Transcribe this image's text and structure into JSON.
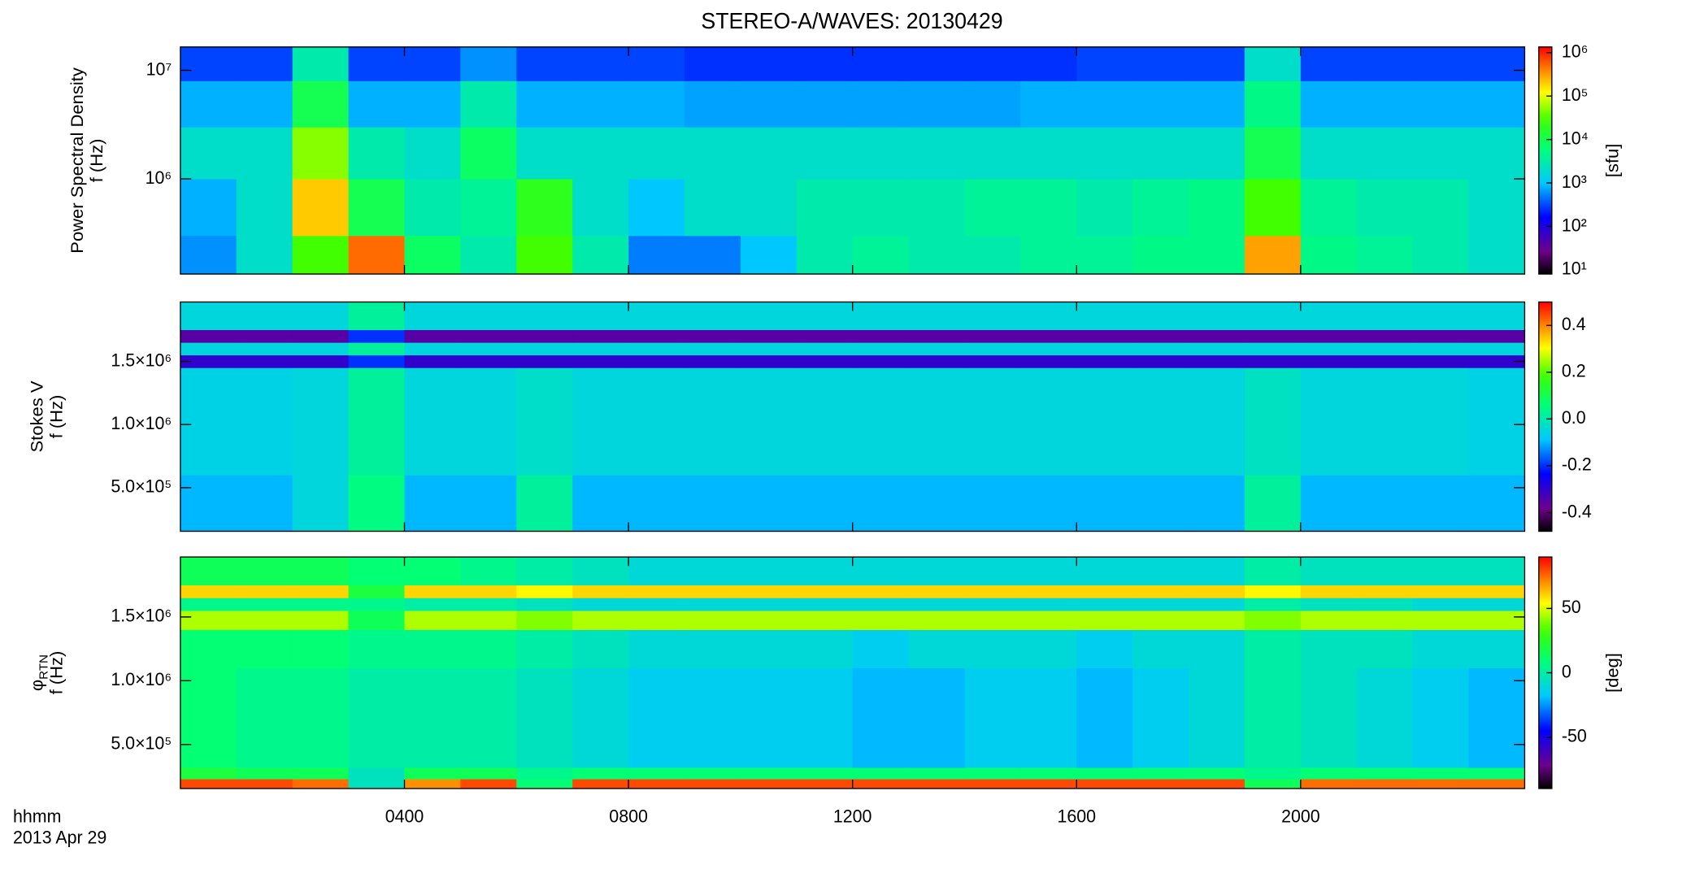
{
  "chart_data": [
    {
      "type": "heatmap",
      "title": "STEREO-A/WAVES: 20130429",
      "ylabel": [
        "Power Spectral Density",
        "f (Hz)"
      ],
      "xlim": [
        0,
        24
      ],
      "xticks": [
        4,
        8,
        12,
        16,
        20
      ],
      "x_edges": [
        0,
        1,
        2,
        3,
        4,
        5,
        6,
        7,
        8,
        9,
        10,
        11,
        12,
        13,
        14,
        15,
        16,
        17,
        18,
        19,
        20,
        21,
        22,
        23,
        24
      ],
      "ylog": true,
      "ylim": [
        133000,
        16400000
      ],
      "yticks": [
        {
          "value": 1000000,
          "label": "10⁶"
        },
        {
          "value": 10000000,
          "label": "10⁷"
        }
      ],
      "y_edges": [
        133000,
        300000,
        1000000,
        3000000,
        8000000,
        16400000
      ],
      "zlog": true,
      "zlim": [
        8,
        1350000
      ],
      "zlabel": "[sfu]",
      "zticks": [
        {
          "value": 10,
          "label": "10¹"
        },
        {
          "value": 100,
          "label": "10²"
        },
        {
          "value": 1000,
          "label": "10³"
        },
        {
          "value": 10000,
          "label": "10⁴"
        },
        {
          "value": 100000,
          "label": "10⁵"
        },
        {
          "value": 1000000,
          "label": "10⁶"
        }
      ],
      "z": [
        [
          600,
          2000.0,
          30000.0,
          500000.0,
          8000.0,
          3000.0,
          30000.0,
          3000.0,
          500,
          500,
          1000.0,
          3000.0,
          4000.0,
          3000.0,
          3000.0,
          4000.0,
          4000.0,
          5000.0,
          5000.0,
          300000.0,
          5000.0,
          4000.0,
          3000.0,
          2000.0
        ],
        [
          800,
          2000.0,
          200000.0,
          10000.0,
          3000.0,
          4000.0,
          20000.0,
          2000.0,
          1000.0,
          2000.0,
          2000.0,
          3000.0,
          3000.0,
          3000.0,
          4000.0,
          4000.0,
          3000.0,
          4000.0,
          5000.0,
          30000.0,
          4000.0,
          3000.0,
          3000.0,
          2000.0
        ],
        [
          2000.0,
          2000.0,
          50000.0,
          3000.0,
          2000.0,
          8000.0,
          2000.0,
          2000.0,
          2000.0,
          2000.0,
          2000.0,
          2000.0,
          2000.0,
          2000.0,
          2000.0,
          2000.0,
          2000.0,
          2000.0,
          2000.0,
          10000.0,
          2000.0,
          2000.0,
          2000.0,
          2000.0
        ],
        [
          800,
          800,
          10000.0,
          800,
          800,
          3000.0,
          800,
          800,
          800,
          700,
          700,
          700,
          700,
          700,
          700,
          800,
          800,
          800,
          800,
          5000.0,
          800,
          800,
          800,
          800
        ],
        [
          300,
          300,
          3000.0,
          300,
          300,
          600,
          300,
          300,
          300,
          250,
          250,
          250,
          250,
          250,
          250,
          250,
          300,
          300,
          300,
          2000.0,
          300,
          300,
          300,
          300
        ]
      ]
    },
    {
      "type": "heatmap",
      "ylabel": [
        "Stokes V",
        "f (Hz)"
      ],
      "xlim": [
        0,
        24
      ],
      "xticks": [
        4,
        8,
        12,
        16,
        20
      ],
      "x_edges": [
        0,
        1,
        2,
        3,
        4,
        5,
        6,
        7,
        8,
        9,
        10,
        11,
        12,
        13,
        14,
        15,
        16,
        17,
        18,
        19,
        20,
        21,
        22,
        23,
        24
      ],
      "ylog": false,
      "ylim": [
        155000,
        1970000
      ],
      "yticks": [
        {
          "value": 500000,
          "label": "5.0×10⁵"
        },
        {
          "value": 1000000,
          "label": "1.0×10⁶"
        },
        {
          "value": 1500000,
          "label": "1.5×10⁶"
        }
      ],
      "y_edges": [
        155000,
        600000,
        1100000,
        1450000,
        1550000,
        1650000,
        1750000,
        1970000
      ],
      "zlog": false,
      "zlim": [
        -0.48,
        0.5
      ],
      "zticks": [
        -0.4,
        -0.2,
        {
          "value": 0,
          "label": "0.0"
        },
        0.2,
        0.4
      ],
      "z": [
        [
          -0.1,
          -0.1,
          -0.05,
          0.05,
          -0.1,
          -0.1,
          0.02,
          -0.1,
          -0.1,
          -0.1,
          -0.1,
          -0.1,
          -0.1,
          -0.1,
          -0.1,
          -0.1,
          -0.1,
          -0.1,
          -0.1,
          0.02,
          -0.1,
          -0.1,
          -0.1,
          -0.1
        ],
        [
          -0.06,
          -0.06,
          -0.05,
          0.02,
          -0.05,
          -0.05,
          -0.03,
          -0.05,
          -0.05,
          -0.05,
          -0.05,
          -0.05,
          -0.05,
          -0.05,
          -0.05,
          -0.05,
          -0.05,
          -0.05,
          -0.05,
          -0.02,
          -0.05,
          -0.05,
          -0.05,
          -0.06
        ],
        [
          -0.06,
          -0.06,
          -0.05,
          0.02,
          -0.05,
          -0.05,
          -0.03,
          -0.05,
          -0.05,
          -0.05,
          -0.05,
          -0.05,
          -0.05,
          -0.05,
          -0.05,
          -0.05,
          -0.05,
          -0.05,
          -0.05,
          -0.02,
          -0.05,
          -0.05,
          -0.05,
          -0.06
        ],
        [
          -0.3,
          -0.3,
          -0.3,
          -0.2,
          -0.3,
          -0.3,
          -0.3,
          -0.3,
          -0.3,
          -0.3,
          -0.3,
          -0.3,
          -0.3,
          -0.3,
          -0.3,
          -0.3,
          -0.3,
          -0.3,
          -0.3,
          -0.3,
          -0.3,
          -0.3,
          -0.3,
          -0.3
        ],
        [
          -0.05,
          -0.05,
          -0.05,
          0.02,
          -0.05,
          -0.05,
          -0.05,
          -0.05,
          -0.05,
          -0.05,
          -0.05,
          -0.05,
          -0.05,
          -0.05,
          -0.05,
          -0.05,
          -0.05,
          -0.05,
          -0.05,
          -0.05,
          -0.05,
          -0.05,
          -0.05,
          -0.05
        ],
        [
          -0.35,
          -0.35,
          -0.35,
          -0.2,
          -0.35,
          -0.35,
          -0.35,
          -0.35,
          -0.35,
          -0.35,
          -0.35,
          -0.35,
          -0.35,
          -0.35,
          -0.35,
          -0.35,
          -0.35,
          -0.35,
          -0.35,
          -0.35,
          -0.35,
          -0.35,
          -0.35,
          -0.35
        ],
        [
          -0.05,
          -0.05,
          -0.05,
          0.02,
          -0.05,
          -0.05,
          -0.05,
          -0.05,
          -0.05,
          -0.05,
          -0.05,
          -0.05,
          -0.05,
          -0.05,
          -0.05,
          -0.05,
          -0.05,
          -0.05,
          -0.05,
          -0.05,
          -0.05,
          -0.05,
          -0.05,
          -0.05
        ]
      ]
    },
    {
      "type": "heatmap",
      "ylabel": [
        "φ",
        "f (Hz)"
      ],
      "ylabel_sub": "RTN",
      "xlabel": "hhmm",
      "date_label": "2013 Apr 29",
      "xlim": [
        0,
        24
      ],
      "xticks": [
        {
          "value": 4,
          "label": "0400"
        },
        {
          "value": 8,
          "label": "0800"
        },
        {
          "value": 12,
          "label": "1200"
        },
        {
          "value": 16,
          "label": "1600"
        },
        {
          "value": 20,
          "label": "2000"
        }
      ],
      "x_edges": [
        0,
        1,
        2,
        3,
        4,
        5,
        6,
        7,
        8,
        9,
        10,
        11,
        12,
        13,
        14,
        15,
        16,
        17,
        18,
        19,
        20,
        21,
        22,
        23,
        24
      ],
      "ylog": false,
      "ylim": [
        155000,
        1970000
      ],
      "yticks": [
        {
          "value": 500000,
          "label": "5.0×10⁵"
        },
        {
          "value": 1000000,
          "label": "1.0×10⁶"
        },
        {
          "value": 1500000,
          "label": "1.5×10⁶"
        }
      ],
      "y_edges": [
        155000,
        230000,
        320000,
        1100000,
        1400000,
        1550000,
        1650000,
        1750000,
        1970000
      ],
      "zlog": false,
      "zlim": [
        -90,
        90
      ],
      "zlabel": "[deg]",
      "zticks": [
        -50,
        0,
        50
      ],
      "z": [
        [
          80,
          80,
          75,
          -5,
          70,
          80,
          10,
          80,
          80,
          80,
          80,
          80,
          80,
          80,
          80,
          80,
          80,
          80,
          80,
          15,
          75,
          75,
          75,
          75
        ],
        [
          20,
          15,
          15,
          -5,
          15,
          15,
          5,
          10,
          10,
          10,
          10,
          10,
          10,
          10,
          10,
          10,
          10,
          10,
          10,
          5,
          10,
          10,
          10,
          10
        ],
        [
          10,
          5,
          5,
          0,
          0,
          0,
          -5,
          -10,
          -15,
          -15,
          -15,
          -15,
          -20,
          -20,
          -15,
          -15,
          -20,
          -15,
          -10,
          0,
          -5,
          -10,
          -15,
          -20
        ],
        [
          10,
          10,
          10,
          5,
          5,
          5,
          0,
          -5,
          -10,
          -10,
          -10,
          -10,
          -15,
          -10,
          -10,
          -10,
          -15,
          -10,
          -10,
          0,
          -5,
          -5,
          -10,
          -10
        ],
        [
          45,
          45,
          45,
          15,
          45,
          45,
          40,
          45,
          45,
          45,
          45,
          45,
          45,
          45,
          45,
          45,
          45,
          45,
          45,
          40,
          45,
          45,
          45,
          45
        ],
        [
          5,
          5,
          5,
          5,
          0,
          0,
          -5,
          -10,
          -10,
          -10,
          -10,
          -10,
          -10,
          -10,
          -10,
          -10,
          -10,
          -10,
          -10,
          0,
          -5,
          -5,
          -10,
          -10
        ],
        [
          60,
          60,
          60,
          20,
          60,
          60,
          55,
          60,
          60,
          60,
          60,
          60,
          60,
          60,
          60,
          60,
          60,
          60,
          60,
          55,
          60,
          60,
          60,
          60
        ],
        [
          15,
          15,
          15,
          10,
          10,
          5,
          0,
          -5,
          -10,
          -10,
          -10,
          -10,
          -10,
          -10,
          -10,
          -10,
          -10,
          -10,
          -10,
          0,
          -5,
          -5,
          -5,
          -5
        ]
      ]
    }
  ]
}
